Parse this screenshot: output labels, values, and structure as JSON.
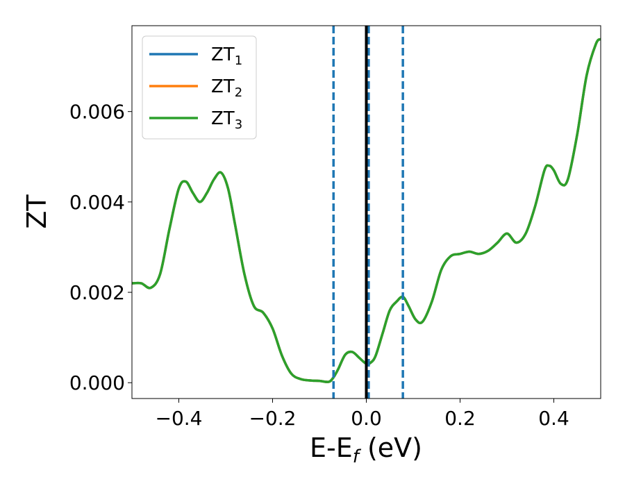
{
  "chart_data": {
    "type": "line",
    "xlabel": "E-E",
    "xlabel_sub": "f",
    "xlabel_unit": " (eV)",
    "ylabel": "ZT",
    "xlim": [
      -0.5,
      0.5
    ],
    "ylim": [
      -0.00035,
      0.0079
    ],
    "xticks": [
      -0.4,
      -0.2,
      0.0,
      0.2,
      0.4
    ],
    "xtick_labels": [
      "−0.4",
      "−0.2",
      "0.0",
      "0.2",
      "0.4"
    ],
    "yticks": [
      0.0,
      0.002,
      0.004,
      0.006
    ],
    "ytick_labels": [
      "0.000",
      "0.002",
      "0.004",
      "0.006"
    ],
    "grid": false,
    "legend_position": "top-left",
    "colors": {
      "zt1": "#1f77b4",
      "zt2": "#ff7f0e",
      "zt3": "#2ca02c",
      "fermi": "#000000",
      "dashed": "#1f77b4"
    },
    "vlines": [
      {
        "x": -0.07,
        "style": "dashed"
      },
      {
        "x": 0.005,
        "style": "dashed"
      },
      {
        "x": 0.078,
        "style": "dashed"
      },
      {
        "x": 0.0,
        "style": "solid"
      }
    ],
    "series": [
      {
        "name": "ZT",
        "sub": "1",
        "color": "#1f77b4",
        "x": [
          -0.5,
          -0.48,
          -0.46,
          -0.44,
          -0.42,
          -0.4,
          -0.385,
          -0.37,
          -0.355,
          -0.34,
          -0.325,
          -0.31,
          -0.295,
          -0.28,
          -0.26,
          -0.24,
          -0.22,
          -0.2,
          -0.18,
          -0.16,
          -0.14,
          -0.12,
          -0.1,
          -0.08,
          -0.07,
          -0.06,
          -0.045,
          -0.03,
          -0.015,
          0.0,
          0.01,
          0.02,
          0.035,
          0.05,
          0.065,
          0.078,
          0.09,
          0.105,
          0.12,
          0.14,
          0.16,
          0.18,
          0.2,
          0.22,
          0.24,
          0.26,
          0.28,
          0.3,
          0.32,
          0.34,
          0.36,
          0.38,
          0.39,
          0.4,
          0.415,
          0.43,
          0.45,
          0.47,
          0.49,
          0.5
        ],
        "y": [
          0.0022,
          0.0022,
          0.0021,
          0.0024,
          0.0034,
          0.0043,
          0.00445,
          0.0042,
          0.004,
          0.0042,
          0.0045,
          0.00465,
          0.0043,
          0.0035,
          0.0024,
          0.0017,
          0.00155,
          0.0012,
          0.0006,
          0.0002,
          8e-05,
          5e-05,
          4e-05,
          2e-05,
          0.00012,
          0.0003,
          0.00062,
          0.00068,
          0.00055,
          0.00042,
          0.00045,
          0.0006,
          0.0011,
          0.0016,
          0.0018,
          0.0019,
          0.0017,
          0.0014,
          0.00135,
          0.0018,
          0.0025,
          0.0028,
          0.00285,
          0.0029,
          0.00285,
          0.00292,
          0.0031,
          0.0033,
          0.0031,
          0.0033,
          0.0039,
          0.0047,
          0.0048,
          0.0047,
          0.0044,
          0.0045,
          0.0055,
          0.0068,
          0.0075,
          0.0076
        ]
      },
      {
        "name": "ZT",
        "sub": "2",
        "color": "#ff7f0e",
        "x": [
          -0.5,
          -0.48,
          -0.46,
          -0.44,
          -0.42,
          -0.4,
          -0.385,
          -0.37,
          -0.355,
          -0.34,
          -0.325,
          -0.31,
          -0.295,
          -0.28,
          -0.26,
          -0.24,
          -0.22,
          -0.2,
          -0.18,
          -0.16,
          -0.14,
          -0.12,
          -0.1,
          -0.08,
          -0.07,
          -0.06,
          -0.045,
          -0.03,
          -0.015,
          0.0,
          0.01,
          0.02,
          0.035,
          0.05,
          0.065,
          0.078,
          0.09,
          0.105,
          0.12,
          0.14,
          0.16,
          0.18,
          0.2,
          0.22,
          0.24,
          0.26,
          0.28,
          0.3,
          0.32,
          0.34,
          0.36,
          0.38,
          0.39,
          0.4,
          0.415,
          0.43,
          0.45,
          0.47,
          0.49,
          0.5
        ],
        "y": [
          0.0022,
          0.0022,
          0.0021,
          0.0024,
          0.0034,
          0.0043,
          0.00445,
          0.0042,
          0.004,
          0.0042,
          0.0045,
          0.00465,
          0.0043,
          0.0035,
          0.0024,
          0.0017,
          0.00155,
          0.0012,
          0.0006,
          0.0002,
          8e-05,
          5e-05,
          4e-05,
          2e-05,
          0.00012,
          0.0003,
          0.00062,
          0.00068,
          0.00055,
          0.00042,
          0.00045,
          0.0006,
          0.0011,
          0.0016,
          0.0018,
          0.0019,
          0.0017,
          0.0014,
          0.00135,
          0.0018,
          0.0025,
          0.0028,
          0.00285,
          0.0029,
          0.00285,
          0.00292,
          0.0031,
          0.0033,
          0.0031,
          0.0033,
          0.0039,
          0.0047,
          0.0048,
          0.0047,
          0.0044,
          0.0045,
          0.0055,
          0.0068,
          0.0075,
          0.0076
        ]
      },
      {
        "name": "ZT",
        "sub": "3",
        "color": "#2ca02c",
        "x": [
          -0.5,
          -0.48,
          -0.46,
          -0.44,
          -0.42,
          -0.4,
          -0.385,
          -0.37,
          -0.355,
          -0.34,
          -0.325,
          -0.31,
          -0.295,
          -0.28,
          -0.26,
          -0.24,
          -0.22,
          -0.2,
          -0.18,
          -0.16,
          -0.14,
          -0.12,
          -0.1,
          -0.08,
          -0.07,
          -0.06,
          -0.045,
          -0.03,
          -0.015,
          0.0,
          0.01,
          0.02,
          0.035,
          0.05,
          0.065,
          0.078,
          0.09,
          0.105,
          0.12,
          0.14,
          0.16,
          0.18,
          0.2,
          0.22,
          0.24,
          0.26,
          0.28,
          0.3,
          0.32,
          0.34,
          0.36,
          0.38,
          0.39,
          0.4,
          0.415,
          0.43,
          0.45,
          0.47,
          0.49,
          0.5
        ],
        "y": [
          0.0022,
          0.0022,
          0.0021,
          0.0024,
          0.0034,
          0.0043,
          0.00445,
          0.0042,
          0.004,
          0.0042,
          0.0045,
          0.00465,
          0.0043,
          0.0035,
          0.0024,
          0.0017,
          0.00155,
          0.0012,
          0.0006,
          0.0002,
          8e-05,
          5e-05,
          4e-05,
          2e-05,
          0.00012,
          0.0003,
          0.00062,
          0.00068,
          0.00055,
          0.00042,
          0.00045,
          0.0006,
          0.0011,
          0.0016,
          0.0018,
          0.0019,
          0.0017,
          0.0014,
          0.00135,
          0.0018,
          0.0025,
          0.0028,
          0.00285,
          0.0029,
          0.00285,
          0.00292,
          0.0031,
          0.0033,
          0.0031,
          0.0033,
          0.0039,
          0.0047,
          0.0048,
          0.0047,
          0.0044,
          0.0045,
          0.0055,
          0.0068,
          0.0075,
          0.0076
        ]
      }
    ]
  }
}
